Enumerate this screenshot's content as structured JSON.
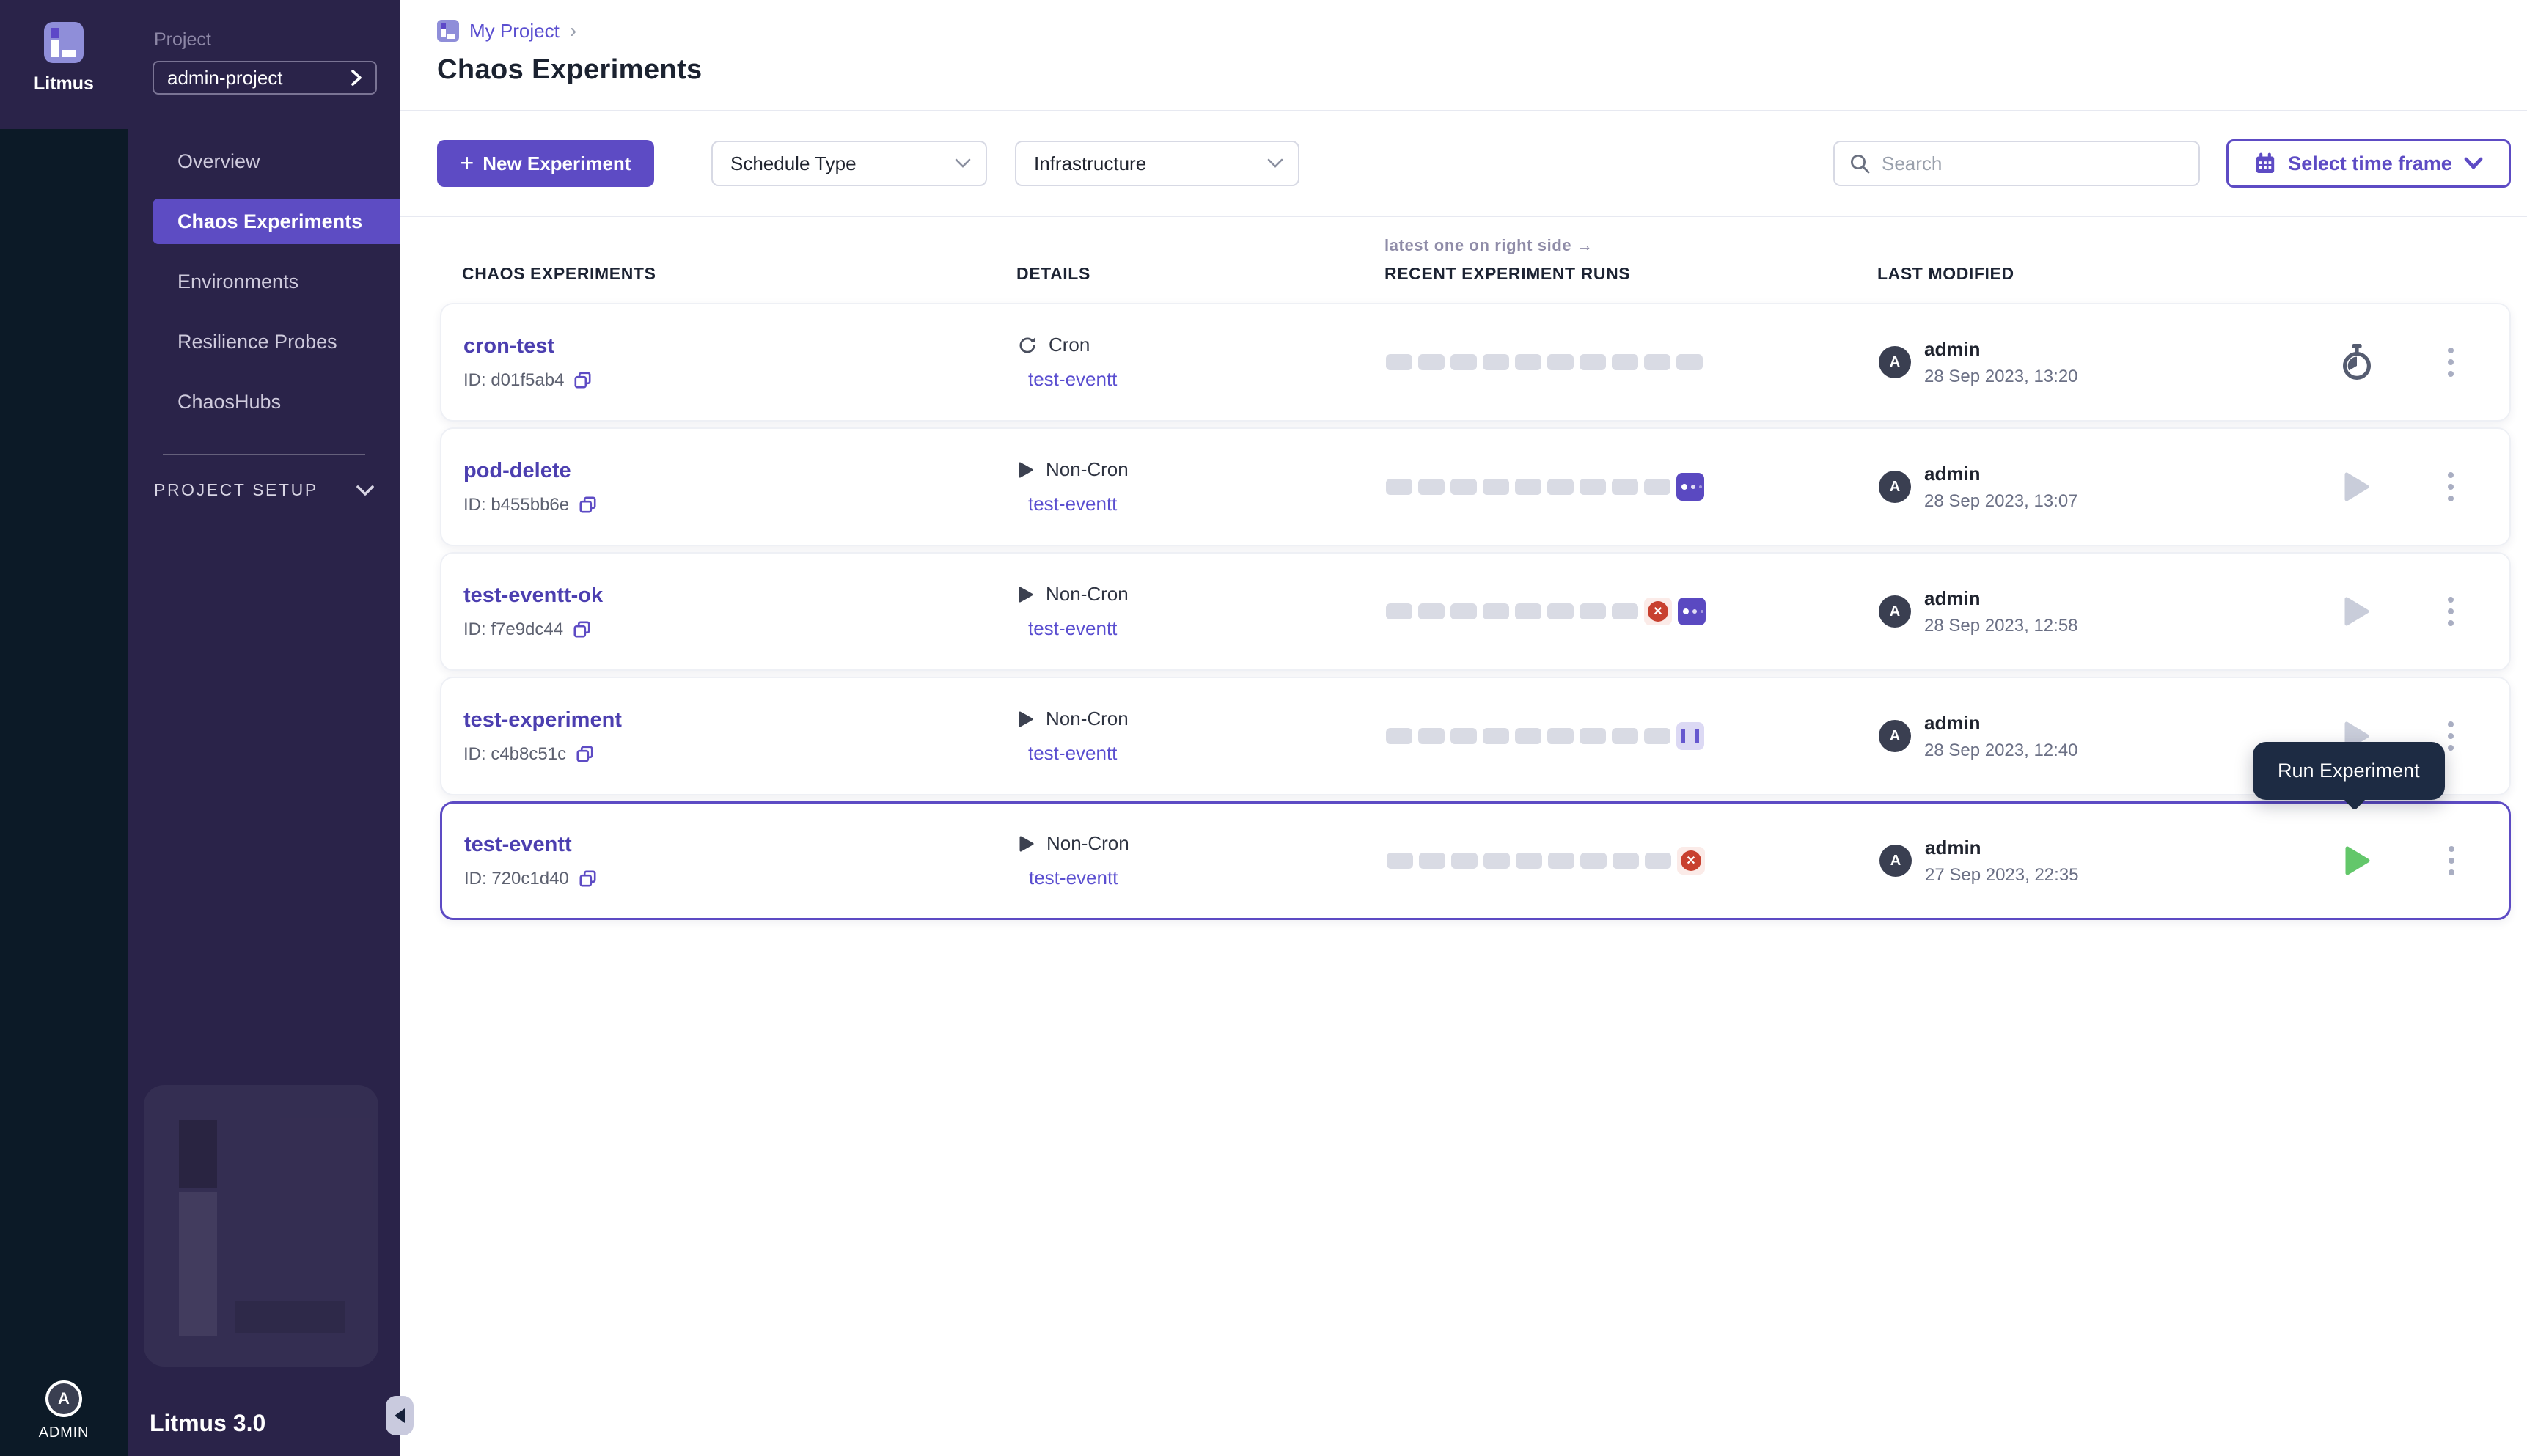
{
  "rail": {
    "logo_text": "Litmus",
    "avatar_initial": "A",
    "avatar_label": "ADMIN"
  },
  "sidebar": {
    "project_label": "Project",
    "project_name": "admin-project",
    "items": [
      {
        "label": "Overview",
        "active": false
      },
      {
        "label": "Chaos Experiments",
        "active": true
      },
      {
        "label": "Environments",
        "active": false
      },
      {
        "label": "Resilience Probes",
        "active": false
      },
      {
        "label": "ChaosHubs",
        "active": false
      }
    ],
    "section_label": "PROJECT SETUP",
    "version": "Litmus 3.0"
  },
  "header": {
    "breadcrumb": "My Project",
    "separator": "›",
    "title": "Chaos Experiments"
  },
  "toolbar": {
    "plus": "+",
    "new_experiment": "New Experiment",
    "schedule_type": "Schedule Type",
    "infrastructure": "Infrastructure",
    "search_placeholder": "Search",
    "time_frame": "Select time frame"
  },
  "table": {
    "note": "latest one on right side →",
    "headers": {
      "experiments": "CHAOS EXPERIMENTS",
      "details": "DETAILS",
      "runs": "RECENT EXPERIMENT RUNS",
      "modified": "LAST MODIFIED"
    },
    "rows": [
      {
        "name": "cron-test",
        "id": "ID: d01f5ab4",
        "schedule": "Cron",
        "schedule_type": "cron",
        "target": "test-eventt",
        "runs": [
          "empty",
          "empty",
          "empty",
          "empty",
          "empty",
          "empty",
          "empty",
          "empty",
          "empty",
          "empty"
        ],
        "modified_by": "admin",
        "modified_at": "28 Sep 2023, 13:20",
        "action": "schedule-timer",
        "selected": false
      },
      {
        "name": "pod-delete",
        "id": "ID: b455bb6e",
        "schedule": "Non-Cron",
        "schedule_type": "non-cron",
        "target": "test-eventt",
        "runs": [
          "empty",
          "empty",
          "empty",
          "empty",
          "empty",
          "empty",
          "empty",
          "empty",
          "empty",
          "running"
        ],
        "modified_by": "admin",
        "modified_at": "28 Sep 2023, 13:07",
        "action": "run-disabled",
        "selected": false
      },
      {
        "name": "test-eventt-ok",
        "id": "ID: f7e9dc44",
        "schedule": "Non-Cron",
        "schedule_type": "non-cron",
        "target": "test-eventt",
        "runs": [
          "empty",
          "empty",
          "empty",
          "empty",
          "empty",
          "empty",
          "empty",
          "empty",
          "failed",
          "running"
        ],
        "modified_by": "admin",
        "modified_at": "28 Sep 2023, 12:58",
        "action": "run-disabled",
        "selected": false
      },
      {
        "name": "test-experiment",
        "id": "ID: c4b8c51c",
        "schedule": "Non-Cron",
        "schedule_type": "non-cron",
        "target": "test-eventt",
        "runs": [
          "empty",
          "empty",
          "empty",
          "empty",
          "empty",
          "empty",
          "empty",
          "empty",
          "empty",
          "paused"
        ],
        "modified_by": "admin",
        "modified_at": "28 Sep 2023, 12:40",
        "action": "run-disabled",
        "selected": false
      },
      {
        "name": "test-eventt",
        "id": "ID: 720c1d40",
        "schedule": "Non-Cron",
        "schedule_type": "non-cron",
        "target": "test-eventt",
        "runs": [
          "empty",
          "empty",
          "empty",
          "empty",
          "empty",
          "empty",
          "empty",
          "empty",
          "empty",
          "failed"
        ],
        "modified_by": "admin",
        "modified_at": "27 Sep 2023, 22:35",
        "action": "run-enabled",
        "selected": true
      }
    ]
  },
  "tooltip": {
    "label": "Run Experiment"
  },
  "colors": {
    "brand": "#5d4bc4",
    "run_green": "#63c76a",
    "fail_red": "#c8402f"
  }
}
